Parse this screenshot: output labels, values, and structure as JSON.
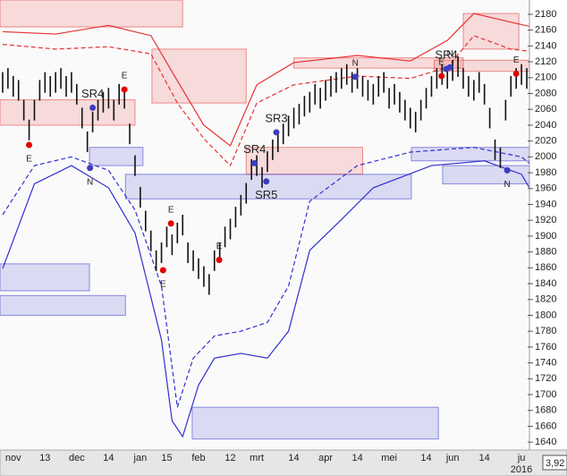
{
  "chart_data": {
    "type": "ohlc",
    "categories": [
      null,
      null,
      "nov",
      null,
      null,
      null,
      null,
      null,
      "13",
      null,
      null,
      null,
      null,
      null,
      "dec",
      null,
      null,
      null,
      null,
      null,
      "14",
      null,
      null,
      null,
      null,
      null,
      "jan",
      null,
      null,
      null,
      null,
      "15",
      null,
      null,
      null,
      null,
      null,
      "feb",
      null,
      null,
      null,
      null,
      null,
      "12",
      null,
      null,
      null,
      null,
      "mrt",
      null,
      null,
      null,
      null,
      null,
      null,
      "14",
      null,
      null,
      null,
      null,
      null,
      "apr",
      null,
      null,
      null,
      null,
      null,
      "14",
      null,
      null,
      null,
      null,
      null,
      "mei",
      null,
      null,
      null,
      null,
      null,
      null,
      "14",
      null,
      null,
      null,
      null,
      "jun",
      null,
      null,
      null,
      null,
      null,
      "14",
      null,
      null,
      null,
      null,
      null,
      null,
      "ju",
      null
    ],
    "high": [
      2107,
      2112,
      2102,
      2097,
      2072,
      2047,
      2072,
      2097,
      2107,
      2102,
      2107,
      2112,
      2102,
      2107,
      2092,
      2062,
      2032,
      2057,
      2072,
      2082,
      2087,
      2072,
      2092,
      2087,
      2042,
      2002,
      1962,
      1932,
      1907,
      1882,
      1892,
      1912,
      1902,
      1917,
      1927,
      1892,
      1882,
      1872,
      1862,
      1852,
      1882,
      1892,
      1912,
      1922,
      1937,
      1952,
      1967,
      1997,
      2002,
      1987,
      2007,
      2022,
      2032,
      2042,
      2052,
      2062,
      2067,
      2077,
      2082,
      2092,
      2087,
      2097,
      2102,
      2107,
      2112,
      2117,
      2107,
      2112,
      2102,
      2097,
      2092,
      2102,
      2107,
      2087,
      2092,
      2082,
      2072,
      2062,
      2057,
      2072,
      2087,
      2102,
      2112,
      2117,
      2112,
      2122,
      2127,
      2112,
      2102,
      2097,
      2107,
      2092,
      2062,
      2022,
      2012,
      2072,
      2102,
      2112,
      2117,
      2112
    ],
    "low": [
      2081,
      2086,
      2076,
      2071,
      2046,
      2021,
      2046,
      2071,
      2081,
      2076,
      2081,
      2086,
      2076,
      2081,
      2066,
      2036,
      2006,
      2031,
      2046,
      2056,
      2061,
      2046,
      2066,
      2061,
      2016,
      1976,
      1936,
      1906,
      1881,
      1856,
      1866,
      1886,
      1876,
      1891,
      1901,
      1866,
      1856,
      1846,
      1836,
      1826,
      1856,
      1866,
      1886,
      1896,
      1911,
      1926,
      1941,
      1971,
      1976,
      1961,
      1981,
      1996,
      2006,
      2016,
      2026,
      2036,
      2041,
      2051,
      2056,
      2066,
      2061,
      2071,
      2076,
      2081,
      2086,
      2091,
      2081,
      2086,
      2076,
      2071,
      2066,
      2076,
      2081,
      2061,
      2066,
      2056,
      2046,
      2036,
      2031,
      2046,
      2061,
      2076,
      2086,
      2091,
      2086,
      2096,
      2101,
      2086,
      2076,
      2071,
      2081,
      2066,
      2036,
      1996,
      1986,
      2046,
      2076,
      2086,
      2091,
      2086
    ],
    "color": "#111111",
    "ylim": [
      1630,
      2198
    ],
    "yticks": [
      1640,
      1660,
      1680,
      1700,
      1720,
      1740,
      1760,
      1780,
      1800,
      1820,
      1840,
      1860,
      1880,
      1900,
      1920,
      1940,
      1960,
      1980,
      2000,
      2020,
      2040,
      2060,
      2080,
      2100,
      2120,
      2140,
      2160,
      2180
    ],
    "zones": [
      {
        "color": "#e84848",
        "x": [
          -0.5,
          34
        ],
        "values": [
          2164,
          2198
        ]
      },
      {
        "color": "#e84848",
        "x": [
          -0.5,
          25
        ],
        "values": [
          2040,
          2072
        ]
      },
      {
        "color": "#e84848",
        "x": [
          28.2,
          46
        ],
        "values": [
          2068,
          2136
        ]
      },
      {
        "color": "#e84848",
        "x": [
          46,
          68
        ],
        "values": [
          1978,
          2012
        ]
      },
      {
        "color": "#e84848",
        "x": [
          55,
          87
        ],
        "values": [
          2112,
          2125
        ]
      },
      {
        "color": "#e84848",
        "x": [
          87,
          97.5
        ],
        "values": [
          2136,
          2181
        ]
      },
      {
        "color": "#e84848",
        "x": [
          81.5,
          100
        ],
        "values": [
          2108,
          2122
        ]
      },
      {
        "color": "#4848d0",
        "x": [
          -0.5,
          16.4
        ],
        "values": [
          1831,
          1865
        ]
      },
      {
        "color": "#4848d0",
        "x": [
          -0.5,
          23.2
        ],
        "values": [
          1800,
          1825
        ]
      },
      {
        "color": "#4848d0",
        "x": [
          16.4,
          26.5
        ],
        "values": [
          1989,
          2012
        ]
      },
      {
        "color": "#4848d0",
        "x": [
          23.2,
          77.2
        ],
        "values": [
          1947,
          1978
        ]
      },
      {
        "color": "#4848d0",
        "x": [
          35.8,
          82.3
        ],
        "values": [
          1644,
          1684
        ]
      },
      {
        "color": "#4848d0",
        "x": [
          77.2,
          100
        ],
        "values": [
          1995,
          2012
        ]
      },
      {
        "color": "#4848d0",
        "x": [
          83.1,
          100
        ],
        "values": [
          1966,
          1989
        ]
      }
    ],
    "bands": [
      {
        "color": "#e83030",
        "dashed": false,
        "x": [
          0,
          10,
          20,
          28,
          33,
          38,
          43,
          48,
          55,
          67,
          77,
          84,
          89,
          96,
          100
        ],
        "values": [
          2158,
          2155,
          2166,
          2153,
          2096,
          2040,
          2014,
          2091,
          2119,
          2128,
          2121,
          2147,
          2181,
          2170,
          2164
        ]
      },
      {
        "color": "#e83030",
        "dashed": true,
        "x": [
          0,
          10,
          20,
          28,
          33,
          38,
          43,
          48,
          55,
          67,
          77,
          84,
          89,
          96,
          100
        ],
        "values": [
          2142,
          2136,
          2139,
          2130,
          2068,
          2023,
          1989,
          2068,
          2091,
          2102,
          2099,
          2113,
          2153,
          2136,
          2133
        ]
      },
      {
        "color": "#3030d0",
        "dashed": true,
        "x": [
          0,
          6,
          13,
          20,
          25,
          30,
          33,
          36,
          40,
          45,
          50,
          54,
          58,
          67,
          77,
          89,
          98,
          100
        ],
        "values": [
          1927,
          1989,
          2000,
          1983,
          1933,
          1837,
          1684,
          1746,
          1774,
          1780,
          1791,
          1837,
          1944,
          1989,
          2006,
          2012,
          2000,
          1989
        ]
      },
      {
        "color": "#3030d0",
        "dashed": false,
        "x": [
          0,
          6,
          13,
          20,
          25,
          30,
          32,
          34,
          37,
          40,
          45,
          50,
          54,
          58,
          64,
          70,
          81,
          91,
          98,
          100
        ],
        "values": [
          1859,
          1966,
          1989,
          1961,
          1904,
          1769,
          1667,
          1647,
          1712,
          1746,
          1752,
          1746,
          1780,
          1882,
          1921,
          1961,
          1989,
          1995,
          1978,
          1955
        ]
      }
    ],
    "markers": [
      {
        "label": "E",
        "color": "#e00000",
        "x": 5,
        "value": 2015,
        "label_pos": "below"
      },
      {
        "label": "E",
        "color": "#e00000",
        "x": 23,
        "value": 2085,
        "label_pos": "above"
      },
      {
        "label": "SR4",
        "color": "#3c3cc0",
        "x": 17,
        "value": 2062,
        "label_pos": "above"
      },
      {
        "label": "N",
        "color": "#3c3cc0",
        "x": 16.5,
        "value": 1986,
        "label_pos": "below"
      },
      {
        "label": "E",
        "color": "#e00000",
        "x": 30.3,
        "value": 1857,
        "label_pos": "below"
      },
      {
        "label": "E",
        "color": "#e00000",
        "x": 31.8,
        "value": 1916,
        "label_pos": "above"
      },
      {
        "label": "E",
        "color": "#e00000",
        "x": 40.9,
        "value": 1870,
        "label_pos": "above"
      },
      {
        "label": "SR4",
        "color": "#3c3cc0",
        "x": 47.6,
        "value": 1992,
        "label_pos": "above"
      },
      {
        "label": "SR3",
        "color": "#3c3cc0",
        "x": 51.7,
        "value": 2031,
        "label_pos": "above"
      },
      {
        "label": "SR5",
        "color": "#3c3cc0",
        "x": 49.8,
        "value": 1969,
        "label_pos": "below"
      },
      {
        "label": "N",
        "color": "#3c3cc0",
        "x": 66.6,
        "value": 2101,
        "label_pos": "above"
      },
      {
        "label": "E",
        "color": "#e00000",
        "x": 82.9,
        "value": 2102,
        "label_pos": "above"
      },
      {
        "label": "SR4",
        "color": "#3c3cc0",
        "x": 83.8,
        "value": 2111,
        "label_pos": "above"
      },
      {
        "label": "N",
        "color": "#3c3cc0",
        "x": 84.5,
        "value": 2113,
        "label_pos": "above"
      },
      {
        "label": "E",
        "color": "#e00000",
        "x": 97,
        "value": 2105,
        "label_pos": "above"
      },
      {
        "label": "N",
        "color": "#3c3cc0",
        "x": 95.3,
        "value": 1983,
        "label_pos": "below"
      }
    ],
    "year_label": "2016",
    "corner_label": "3,92"
  }
}
